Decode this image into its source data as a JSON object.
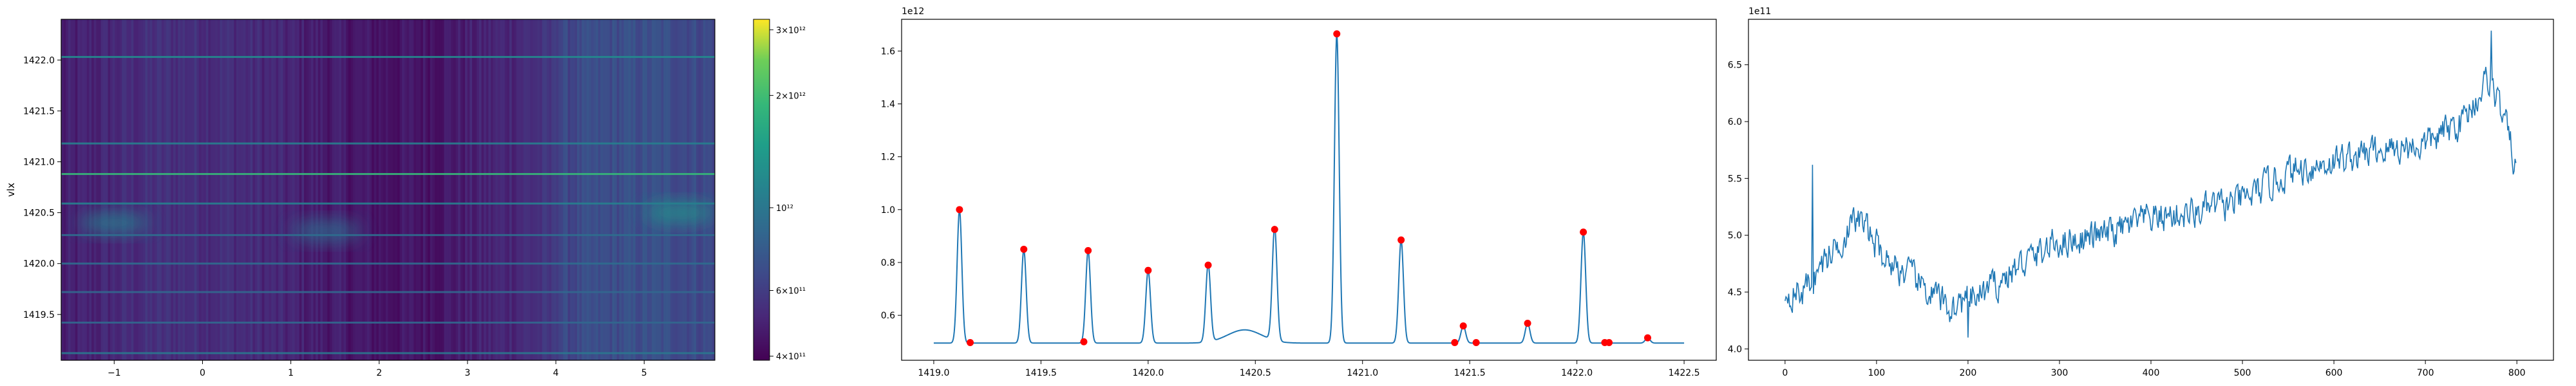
{
  "chart_data": [
    {
      "type": "heatmap",
      "title": "",
      "xlabel": "",
      "ylabel": "vlx",
      "xlim": [
        -1.6,
        5.8
      ],
      "ylim": [
        1419.05,
        1422.4
      ],
      "x_ticks": [
        -1,
        0,
        1,
        2,
        3,
        4,
        5
      ],
      "y_ticks": [
        1419.5,
        1420.0,
        1420.5,
        1421.0,
        1421.5,
        1422.0
      ],
      "colorbar": {
        "scale": "log",
        "range": [
          390000000000.0,
          3200000000000.0
        ],
        "colormap": "viridis",
        "ticks": [
          {
            "value": 400000000000.0,
            "label": "4×10¹¹"
          },
          {
            "value": 600000000000.0,
            "label": "6×10¹¹"
          },
          {
            "value": 1000000000000.0,
            "label": "10¹²"
          },
          {
            "value": 2000000000000.0,
            "label": "2×10¹²"
          },
          {
            "value": 3000000000000.0,
            "label": "3×10¹²"
          }
        ]
      },
      "bright_rows": [
        {
          "y": 1422.03,
          "value": 1200000000000.0
        },
        {
          "y": 1421.18,
          "value": 1100000000000.0
        },
        {
          "y": 1420.88,
          "value": 1900000000000.0
        },
        {
          "y": 1420.59,
          "value": 1100000000000.0
        },
        {
          "y": 1420.28,
          "value": 900000000000.0
        },
        {
          "y": 1420.0,
          "value": 900000000000.0
        },
        {
          "y": 1419.72,
          "value": 850000000000.0
        },
        {
          "y": 1419.42,
          "value": 850000000000.0
        },
        {
          "y": 1419.12,
          "value": 1000000000000.0
        }
      ],
      "blobs": [
        {
          "x": -1.0,
          "y": 1420.4,
          "value": 1100000000000.0
        },
        {
          "x": 1.4,
          "y": 1420.32,
          "value": 900000000000.0
        },
        {
          "x": 5.4,
          "y": 1420.5,
          "value": 1300000000000.0
        }
      ]
    },
    {
      "type": "line",
      "title": "",
      "xlabel": "",
      "ylabel": "",
      "offset_text": "1e12",
      "xlim": [
        1418.85,
        1422.65
      ],
      "ylim": [
        0.43,
        1.72
      ],
      "x_ticks": [
        1419.0,
        1419.5,
        1420.0,
        1420.5,
        1421.0,
        1421.5,
        1422.0,
        1422.5
      ],
      "y_ticks": [
        0.6,
        0.8,
        1.0,
        1.2,
        1.4,
        1.6
      ],
      "baseline": 0.495,
      "peaks": [
        {
          "x": 1419.12,
          "y": 1.0
        },
        {
          "x": 1419.42,
          "y": 0.85
        },
        {
          "x": 1419.72,
          "y": 0.845
        },
        {
          "x": 1420.0,
          "y": 0.77
        },
        {
          "x": 1420.28,
          "y": 0.79
        },
        {
          "x": 1420.59,
          "y": 0.925
        },
        {
          "x": 1420.88,
          "y": 1.665
        },
        {
          "x": 1421.18,
          "y": 0.885
        },
        {
          "x": 1421.47,
          "y": 0.56
        },
        {
          "x": 1421.77,
          "y": 0.57
        },
        {
          "x": 1422.03,
          "y": 0.915
        },
        {
          "x": 1422.33,
          "y": 0.515
        }
      ],
      "bump": {
        "x": 1420.45,
        "y": 0.545
      },
      "markers": [
        {
          "x": 1419.12,
          "y": 1.0
        },
        {
          "x": 1419.17,
          "y": 0.497
        },
        {
          "x": 1419.42,
          "y": 0.85
        },
        {
          "x": 1419.7,
          "y": 0.5
        },
        {
          "x": 1419.72,
          "y": 0.845
        },
        {
          "x": 1420.0,
          "y": 0.77
        },
        {
          "x": 1420.28,
          "y": 0.79
        },
        {
          "x": 1420.59,
          "y": 0.925
        },
        {
          "x": 1420.88,
          "y": 1.665
        },
        {
          "x": 1421.18,
          "y": 0.885
        },
        {
          "x": 1421.43,
          "y": 0.497
        },
        {
          "x": 1421.47,
          "y": 0.56
        },
        {
          "x": 1421.53,
          "y": 0.497
        },
        {
          "x": 1421.77,
          "y": 0.57
        },
        {
          "x": 1422.03,
          "y": 0.915
        },
        {
          "x": 1422.13,
          "y": 0.497
        },
        {
          "x": 1422.15,
          "y": 0.497
        },
        {
          "x": 1422.33,
          "y": 0.515
        }
      ],
      "line_color": "#1f77b4",
      "marker_color": "#ff0000"
    },
    {
      "type": "line",
      "title": "",
      "xlabel": "",
      "ylabel": "",
      "offset_text": "1e11",
      "xlim": [
        -40,
        840
      ],
      "ylim": [
        3.9,
        6.9
      ],
      "x_ticks": [
        0,
        100,
        200,
        300,
        400,
        500,
        600,
        700,
        800
      ],
      "y_ticks": [
        4.0,
        4.5,
        5.0,
        5.5,
        6.0,
        6.5
      ],
      "n_points": 800,
      "trend": [
        {
          "x": 0,
          "y": 4.5
        },
        {
          "x": 20,
          "y": 4.5
        },
        {
          "x": 50,
          "y": 4.85
        },
        {
          "x": 80,
          "y": 5.15
        },
        {
          "x": 110,
          "y": 4.8
        },
        {
          "x": 150,
          "y": 4.55
        },
        {
          "x": 180,
          "y": 4.35
        },
        {
          "x": 220,
          "y": 4.5
        },
        {
          "x": 260,
          "y": 4.75
        },
        {
          "x": 300,
          "y": 4.95
        },
        {
          "x": 350,
          "y": 5.0
        },
        {
          "x": 400,
          "y": 5.15
        },
        {
          "x": 450,
          "y": 5.2
        },
        {
          "x": 500,
          "y": 5.3
        },
        {
          "x": 550,
          "y": 5.55
        },
        {
          "x": 600,
          "y": 5.65
        },
        {
          "x": 650,
          "y": 5.75
        },
        {
          "x": 700,
          "y": 5.8
        },
        {
          "x": 740,
          "y": 6.0
        },
        {
          "x": 770,
          "y": 6.4
        },
        {
          "x": 790,
          "y": 5.9
        },
        {
          "x": 800,
          "y": 5.55
        }
      ],
      "noise_amplitude": 0.16,
      "extremes": [
        {
          "x": 3,
          "y": 4.4
        },
        {
          "x": 30,
          "y": 5.62
        },
        {
          "x": 200,
          "y": 4.1
        },
        {
          "x": 772,
          "y": 6.8
        }
      ],
      "line_color": "#1f77b4"
    }
  ]
}
